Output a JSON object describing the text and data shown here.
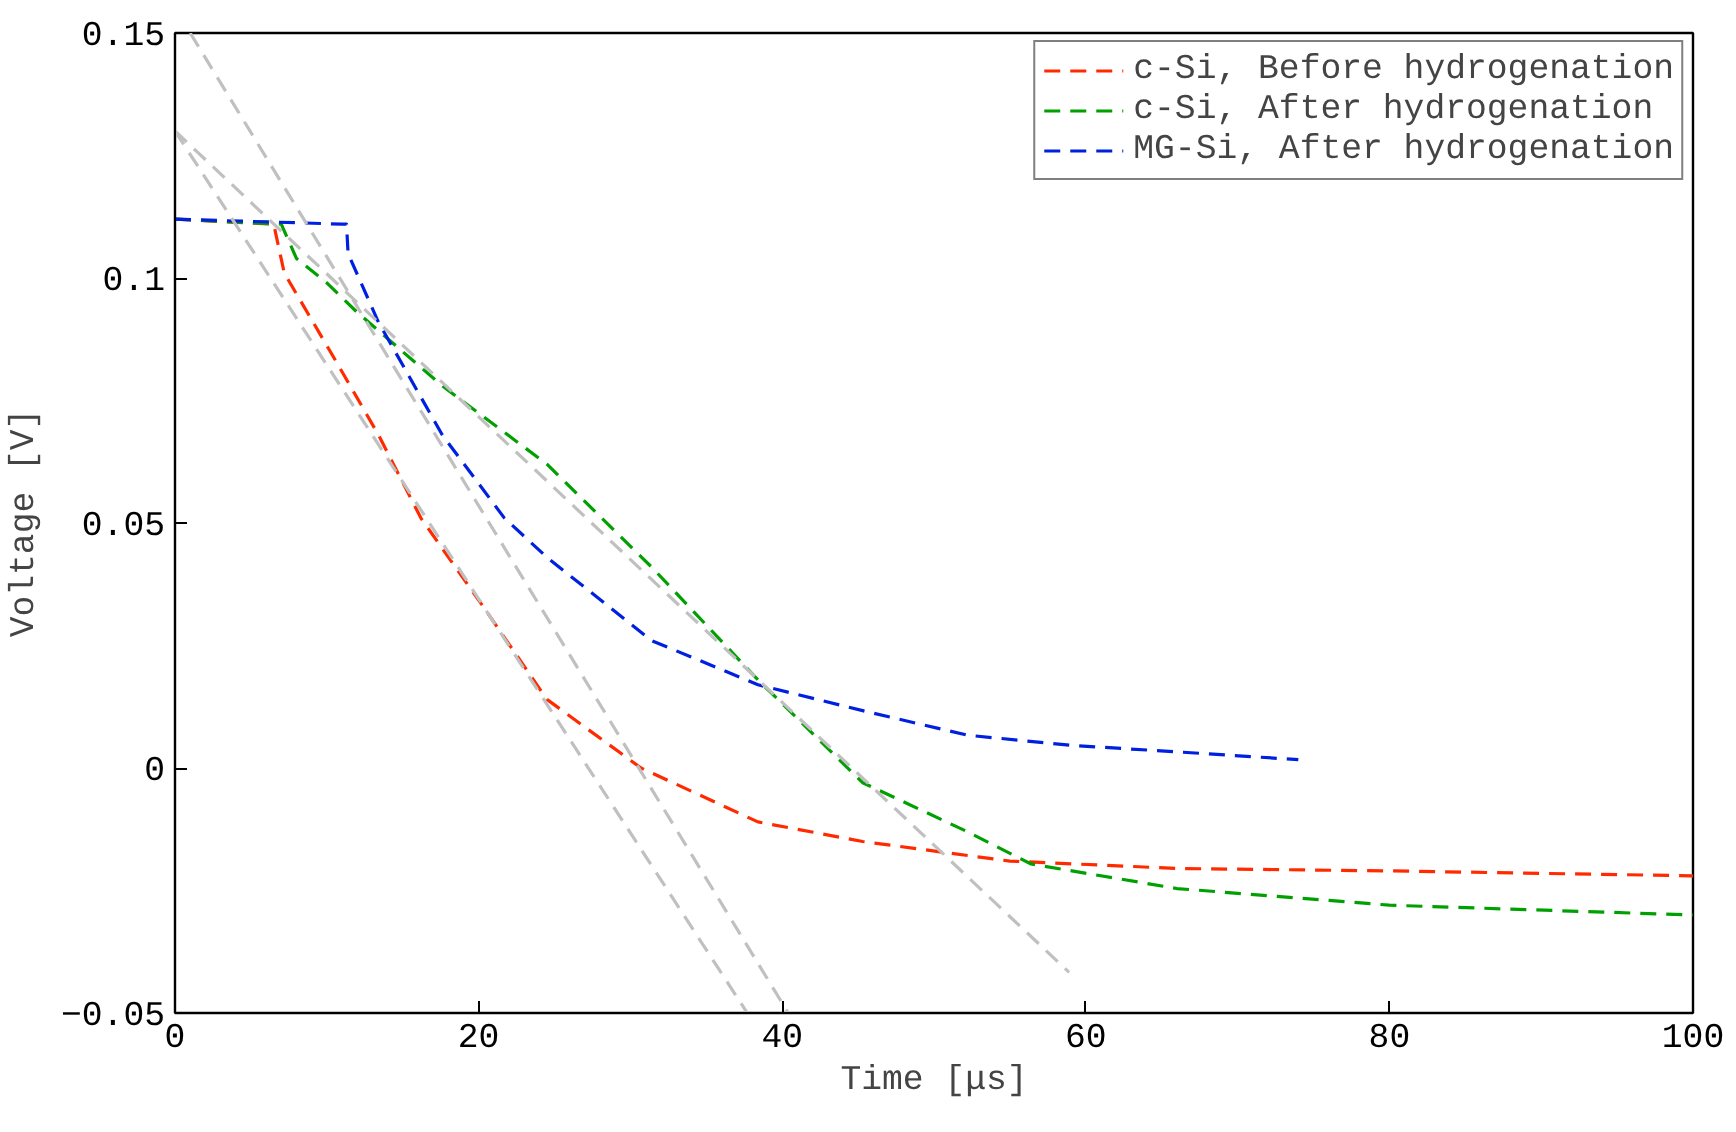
{
  "chart_data": {
    "type": "line",
    "xlabel": "Time [μs]",
    "ylabel": "Voltage [V]",
    "xlim": [
      0,
      100
    ],
    "ylim": [
      -0.05,
      0.15
    ],
    "xticks": [
      0,
      20,
      40,
      60,
      80,
      100
    ],
    "yticks": [
      {
        "value": -0.05,
        "label": "−0.05"
      },
      0,
      0.05,
      0.1,
      0.15
    ],
    "grid": false,
    "legend": "top right",
    "line_style": "dashed",
    "marker": "none",
    "series": [
      {
        "name": "c-Si, Before hydrogenation",
        "color": "#ff2a00",
        "x": [
          0,
          6.5,
          7.2,
          10.7,
          13.4,
          16.2,
          20.4,
          24.5,
          30.7,
          38.4,
          45.3,
          55,
          66,
          80,
          100
        ],
        "values": [
          0.112,
          0.111,
          0.101,
          0.0825,
          0.068,
          0.051,
          0.0325,
          0.014,
          0,
          -0.011,
          -0.015,
          -0.019,
          -0.0205,
          -0.021,
          -0.022
        ]
      },
      {
        "name": "c-Si, After hydrogenation",
        "color": "#00a000",
        "x": [
          0,
          7,
          8,
          10,
          12,
          17.6,
          24.5,
          31.4,
          38.4,
          45.3,
          52.2,
          56.4,
          66,
          80,
          100
        ],
        "values": [
          0.112,
          0.111,
          0.104,
          0.099,
          0.093,
          0.078,
          0.062,
          0.041,
          0.018,
          -0.003,
          -0.013,
          -0.0196,
          -0.0246,
          -0.028,
          -0.03
        ]
      },
      {
        "name": "MG-Si, After hydrogenation",
        "color": "#0020e0",
        "x": [
          0,
          11,
          11.3,
          11.4,
          13.4,
          17.6,
          21.7,
          24.5,
          31.4,
          38.4,
          45.3,
          52.2,
          59.1,
          66,
          74
        ],
        "values": [
          0.112,
          0.111,
          0.111,
          0.105,
          0.091,
          0.068,
          0.051,
          0.043,
          0.026,
          0.017,
          0.0117,
          0.0067,
          0.0046,
          0.0033,
          0.0017
        ]
      },
      {
        "color": "#c0c0c0",
        "x": [
          0,
          58.9
        ],
        "values": [
          0.13,
          -0.0417
        ]
      },
      {
        "color": "#c0c0c0",
        "x": [
          0,
          37.7
        ],
        "values": [
          0.13,
          -0.05
        ]
      },
      {
        "color": "#c0c0c0",
        "x": [
          1,
          40.4
        ],
        "values": [
          0.15,
          -0.05
        ]
      }
    ]
  }
}
